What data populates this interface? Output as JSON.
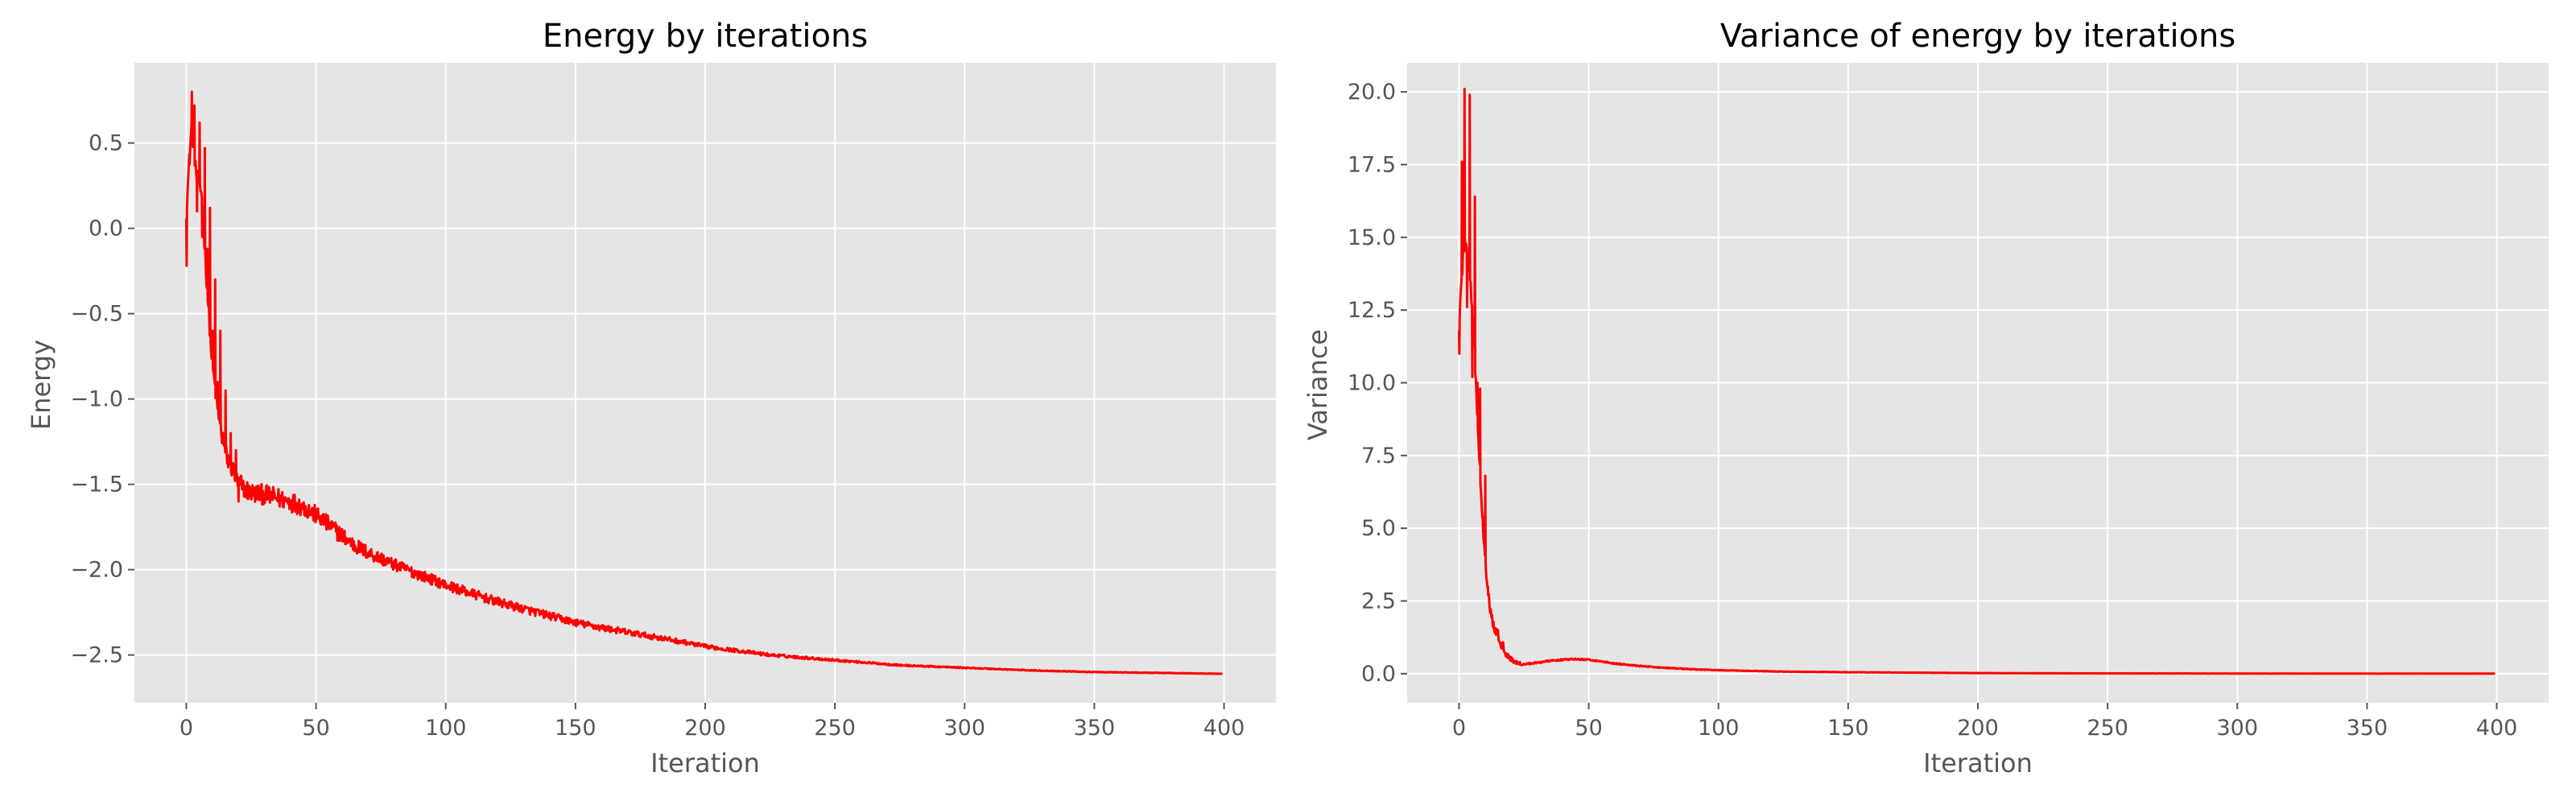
{
  "colors": {
    "figure_bg": "#ffffff",
    "axes_bg": "#e5e5e5",
    "grid": "#ffffff",
    "line": "#ff0000",
    "text": "#000000",
    "tick_text": "#555555"
  },
  "chart_data": [
    {
      "type": "line",
      "title": "Energy by iterations",
      "xlabel": "Iteration",
      "ylabel": "Energy",
      "xlim": [
        -20,
        420
      ],
      "ylim": [
        -2.78,
        0.97
      ],
      "grid": true,
      "xticks": [
        0,
        50,
        100,
        150,
        200,
        250,
        300,
        350,
        400
      ],
      "xtick_labels": [
        "0",
        "50",
        "100",
        "150",
        "200",
        "250",
        "300",
        "350",
        "400"
      ],
      "yticks": [
        0.5,
        0.0,
        -0.5,
        -1.0,
        -1.5,
        -2.0,
        -2.5
      ],
      "ytick_labels": [
        "0.5",
        "0.0",
        "−0.5",
        "−1.0",
        "−1.5",
        "−2.0",
        "−2.5"
      ],
      "series": [
        {
          "color": "#ff0000",
          "anchors": [
            [
              0,
              0.1
            ],
            [
              2,
              0.6
            ],
            [
              4,
              0.3
            ],
            [
              6,
              0.2
            ],
            [
              8,
              -0.35
            ],
            [
              10,
              -0.8
            ],
            [
              12,
              -1.05
            ],
            [
              14,
              -1.25
            ],
            [
              16,
              -1.35
            ],
            [
              18,
              -1.42
            ],
            [
              20,
              -1.5
            ],
            [
              25,
              -1.55
            ],
            [
              30,
              -1.56
            ],
            [
              35,
              -1.58
            ],
            [
              40,
              -1.6
            ],
            [
              45,
              -1.63
            ],
            [
              50,
              -1.68
            ],
            [
              55,
              -1.74
            ],
            [
              60,
              -1.8
            ],
            [
              65,
              -1.86
            ],
            [
              70,
              -1.9
            ],
            [
              80,
              -1.97
            ],
            [
              90,
              -2.03
            ],
            [
              100,
              -2.09
            ],
            [
              110,
              -2.14
            ],
            [
              120,
              -2.19
            ],
            [
              130,
              -2.23
            ],
            [
              140,
              -2.27
            ],
            [
              150,
              -2.31
            ],
            [
              160,
              -2.34
            ],
            [
              175,
              -2.38
            ],
            [
              190,
              -2.42
            ],
            [
              200,
              -2.45
            ],
            [
              225,
              -2.5
            ],
            [
              250,
              -2.53
            ],
            [
              275,
              -2.56
            ],
            [
              300,
              -2.575
            ],
            [
              325,
              -2.59
            ],
            [
              350,
              -2.6
            ],
            [
              375,
              -2.605
            ],
            [
              399,
              -2.61
            ]
          ],
          "spikes": [
            [
              0,
              -0.22
            ],
            [
              1,
              0.43
            ],
            [
              2,
              0.8
            ],
            [
              3,
              0.72
            ],
            [
              4,
              0.1
            ],
            [
              5,
              0.62
            ],
            [
              6,
              -0.05
            ],
            [
              7,
              0.47
            ],
            [
              8,
              -0.12
            ],
            [
              9,
              0.12
            ],
            [
              10,
              -0.6
            ],
            [
              11,
              -0.3
            ],
            [
              12,
              -0.9
            ],
            [
              13,
              -0.6
            ],
            [
              14,
              -1.2
            ],
            [
              15,
              -0.95
            ],
            [
              16,
              -1.4
            ],
            [
              17,
              -1.2
            ],
            [
              18,
              -1.38
            ],
            [
              19,
              -1.3
            ],
            [
              20,
              -1.6
            ],
            [
              21,
              -1.45
            ]
          ],
          "noise": [
            [
              0,
              0.05
            ],
            [
              20,
              0.06
            ],
            [
              40,
              0.06
            ],
            [
              60,
              0.05
            ],
            [
              80,
              0.035
            ],
            [
              100,
              0.03
            ],
            [
              130,
              0.025
            ],
            [
              160,
              0.02
            ],
            [
              200,
              0.012
            ],
            [
              250,
              0.006
            ],
            [
              300,
              0.003
            ],
            [
              399,
              0.001
            ]
          ]
        }
      ]
    },
    {
      "type": "line",
      "title": "Variance of energy by iterations",
      "xlabel": "Iteration",
      "ylabel": "Variance",
      "xlim": [
        -20,
        420
      ],
      "ylim": [
        -1.0,
        21.0
      ],
      "grid": true,
      "xticks": [
        0,
        50,
        100,
        150,
        200,
        250,
        300,
        350,
        400
      ],
      "xtick_labels": [
        "0",
        "50",
        "100",
        "150",
        "200",
        "250",
        "300",
        "350",
        "400"
      ],
      "yticks": [
        20.0,
        17.5,
        15.0,
        12.5,
        10.0,
        7.5,
        5.0,
        2.5,
        0.0
      ],
      "ytick_labels": [
        "20.0",
        "17.5",
        "15.0",
        "12.5",
        "10.0",
        "7.5",
        "5.0",
        "2.5",
        "0.0"
      ],
      "series": [
        {
          "color": "#ff0000",
          "anchors": [
            [
              0,
              12.0
            ],
            [
              2,
              15.0
            ],
            [
              4,
              14.0
            ],
            [
              6,
              11.0
            ],
            [
              8,
              7.0
            ],
            [
              10,
              4.0
            ],
            [
              12,
              2.2
            ],
            [
              14,
              1.5
            ],
            [
              16,
              1.1
            ],
            [
              18,
              0.75
            ],
            [
              20,
              0.5
            ],
            [
              22,
              0.38
            ],
            [
              25,
              0.32
            ],
            [
              30,
              0.38
            ],
            [
              35,
              0.44
            ],
            [
              40,
              0.48
            ],
            [
              45,
              0.5
            ],
            [
              50,
              0.48
            ],
            [
              55,
              0.42
            ],
            [
              60,
              0.35
            ],
            [
              70,
              0.26
            ],
            [
              80,
              0.2
            ],
            [
              90,
              0.15
            ],
            [
              100,
              0.12
            ],
            [
              125,
              0.07
            ],
            [
              150,
              0.05
            ],
            [
              200,
              0.02
            ],
            [
              250,
              0.01
            ],
            [
              300,
              0.005
            ],
            [
              350,
              0.003
            ],
            [
              399,
              0.002
            ]
          ],
          "spikes": [
            [
              0,
              11.0
            ],
            [
              1,
              17.6
            ],
            [
              2,
              20.1
            ],
            [
              3,
              12.6
            ],
            [
              4,
              19.9
            ],
            [
              5,
              10.2
            ],
            [
              6,
              16.4
            ],
            [
              7,
              10.0
            ],
            [
              8,
              9.8
            ],
            [
              9,
              5.4
            ],
            [
              10,
              6.8
            ],
            [
              11,
              3.0
            ],
            [
              12,
              2.1
            ],
            [
              13,
              1.6
            ]
          ],
          "noise": [
            [
              0,
              0.3
            ],
            [
              15,
              0.2
            ],
            [
              25,
              0.03
            ],
            [
              60,
              0.02
            ],
            [
              100,
              0.01
            ],
            [
              200,
              0.004
            ],
            [
              399,
              0.001
            ]
          ]
        }
      ]
    }
  ]
}
